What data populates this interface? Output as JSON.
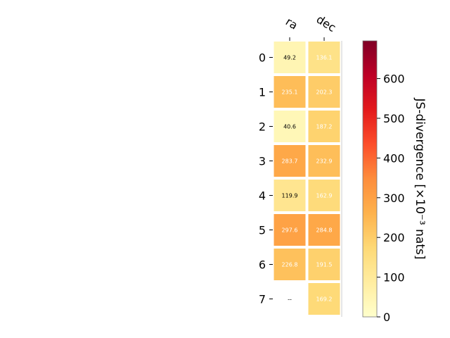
{
  "chart_data": {
    "type": "heatmap",
    "columns": [
      "ra",
      "dec"
    ],
    "rows": [
      "0",
      "1",
      "2",
      "3",
      "4",
      "5",
      "6",
      "7"
    ],
    "values": [
      [
        49.2,
        136.1
      ],
      [
        235.1,
        202.3
      ],
      [
        40.6,
        187.2
      ],
      [
        283.7,
        232.9
      ],
      [
        119.9,
        162.9
      ],
      [
        297.6,
        284.8
      ],
      [
        226.8,
        191.5
      ],
      [
        null,
        169.2
      ]
    ],
    "cell_labels": [
      [
        "49.2",
        "136.1"
      ],
      [
        "235.1",
        "202.3"
      ],
      [
        "40.6",
        "187.2"
      ],
      [
        "283.7",
        "232.9"
      ],
      [
        "119.9",
        "162.9"
      ],
      [
        "297.6",
        "284.8"
      ],
      [
        "226.8",
        "191.5"
      ],
      [
        "--",
        "169.2"
      ]
    ],
    "colorbar": {
      "label": "JS-divergence [×10⁻³ nats]",
      "range": [
        0,
        695
      ],
      "ticks": [
        0,
        100,
        200,
        300,
        400,
        500,
        600
      ],
      "colormap": "YlOrRd"
    },
    "label_threshold": 135
  }
}
